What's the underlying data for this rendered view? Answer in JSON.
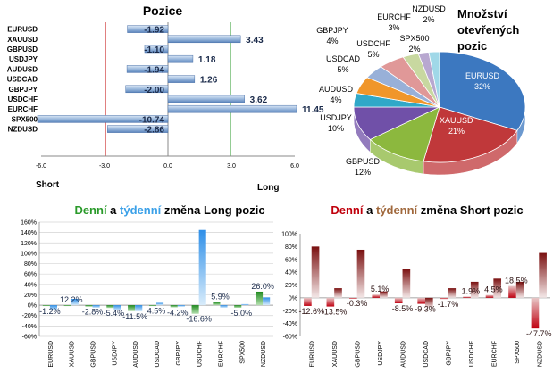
{
  "colors": {
    "bar_blue": "#8fb0d8",
    "bar_blue_dark": "#4a78b8",
    "long_green": "#3aa83a",
    "short_red": "#c0000c",
    "week_blue": "#5ab0f0",
    "week_brown": "#9b6a4a",
    "grid": "#c8c8c8",
    "red_line": "#c00000",
    "green_line": "#2a9a2a"
  },
  "chart_data": [
    {
      "id": "positions",
      "type": "bar",
      "orientation": "horizontal",
      "title": "Pozice",
      "categories": [
        "EURUSD",
        "XAUUSD",
        "GBPUSD",
        "USDJPY",
        "AUDUSD",
        "USDCAD",
        "GBPJPY",
        "USDCHF",
        "EURCHF",
        "SPX500",
        "NZDUSD"
      ],
      "values": [
        -1.92,
        3.43,
        -1.1,
        1.18,
        -1.94,
        1.26,
        -2.0,
        3.62,
        11.45,
        -10.74,
        -2.86
      ],
      "value_labels": [
        "-1.92",
        "3.43",
        "-1.10",
        "1.18",
        "-1.94",
        "1.26",
        "-2.00",
        "3.62",
        "11.45",
        "-10.74",
        "-2.86"
      ],
      "xticks": [
        "-6.0",
        "-3.0",
        "0.0",
        "3.0",
        "6.0"
      ],
      "xtick_values": [
        -6,
        -3,
        0,
        3,
        6
      ],
      "xlim": [
        -6,
        6
      ],
      "xlabel_left": "Short",
      "xlabel_right": "Long",
      "reference_lines": [
        -3,
        3
      ],
      "grid": false
    },
    {
      "id": "open_interest",
      "type": "pie",
      "title_lines": [
        "Množství",
        "otevřených",
        "pozic"
      ],
      "labels": [
        "EURUSD",
        "XAUUSD",
        "GBPUSD",
        "USDJPY",
        "AUDUSD",
        "USDCAD",
        "GBPJPY",
        "USDCHF",
        "EURCHF",
        "SPX500",
        "NZDUSD"
      ],
      "values": [
        32,
        21,
        12,
        10,
        4,
        5,
        4,
        5,
        3,
        2,
        2
      ],
      "value_labels": [
        "32%",
        "21%",
        "12%",
        "10%",
        "4%",
        "5%",
        "4%",
        "5%",
        "3%",
        "2%",
        "2%"
      ],
      "colors": [
        "#3c78c0",
        "#c0383a",
        "#8cb83e",
        "#7050a8",
        "#30a8c8",
        "#f0962a",
        "#98b0d8",
        "#e09898",
        "#c8d8a0",
        "#b8a8d0",
        "#a0d8e8"
      ]
    },
    {
      "id": "long_change",
      "type": "bar",
      "title_parts": [
        "Denní",
        " a ",
        "týdenní",
        " změna Long pozic"
      ],
      "categories": [
        "EURUSD",
        "XAUUSD",
        "GBPUSD",
        "USDJPY",
        "AUDUSD",
        "USDCAD",
        "GBPJPY",
        "USDCHF",
        "EURCHF",
        "SPX500",
        "NZDUSD"
      ],
      "series": [
        {
          "name": "Denní",
          "values": [
            -1.2,
            0,
            -2.8,
            -5.4,
            -11.5,
            -1,
            -4.2,
            -16.6,
            5.9,
            -5.0,
            26.0
          ]
        },
        {
          "name": "týdenní",
          "values": [
            -10,
            12.2,
            -5,
            -10,
            -12,
            4.5,
            -3,
            145,
            -5,
            2,
            15
          ]
        }
      ],
      "data_labels": [
        {
          "category": "EURUSD",
          "text": "-1.2%"
        },
        {
          "category": "XAUUSD",
          "text": "12.2%"
        },
        {
          "category": "GBPUSD",
          "text": "-2.8%"
        },
        {
          "category": "USDJPY",
          "text": "-5.4%"
        },
        {
          "category": "AUDUSD",
          "text": "-11.5%"
        },
        {
          "category": "USDCAD",
          "text": "4.5%"
        },
        {
          "category": "GBPJPY",
          "text": "-4.2%"
        },
        {
          "category": "USDCHF",
          "text": "-16.6%"
        },
        {
          "category": "EURCHF",
          "text": "5.9%"
        },
        {
          "category": "SPX500",
          "text": "-5.0%"
        },
        {
          "category": "NZDUSD",
          "text": "26.0%"
        }
      ],
      "yticks": [
        "160%",
        "140%",
        "120%",
        "100%",
        "80%",
        "60%",
        "40%",
        "20%",
        "0%",
        "-20%",
        "-40%",
        "-60%"
      ],
      "ylim": [
        -60,
        160
      ],
      "grid": true
    },
    {
      "id": "short_change",
      "type": "bar",
      "title_parts": [
        "Denní",
        " a ",
        "týdenní",
        " změna Short pozic"
      ],
      "categories": [
        "EURUSD",
        "XAUUSD",
        "GBPUSD",
        "USDJPY",
        "AUDUSD",
        "USDCAD",
        "GBPJPY",
        "USDCHF",
        "EURCHF",
        "SPX500",
        "NZDUSD"
      ],
      "series": [
        {
          "name": "Denní",
          "values": [
            -12.6,
            -13.5,
            -0.3,
            5.1,
            -8.5,
            -9.3,
            -1.7,
            1.9,
            4.5,
            18.5,
            -47.7
          ]
        },
        {
          "name": "týdenní",
          "values": [
            80,
            15,
            75,
            10,
            45,
            -15,
            15,
            25,
            30,
            25,
            70
          ]
        }
      ],
      "data_labels": [
        {
          "category": "EURUSD",
          "text": "-12.6%"
        },
        {
          "category": "XAUUSD",
          "text": "-13.5%"
        },
        {
          "category": "GBPUSD",
          "text": "-0.3%"
        },
        {
          "category": "USDJPY",
          "text": "5.1%"
        },
        {
          "category": "AUDUSD",
          "text": "-8.5%"
        },
        {
          "category": "USDCAD",
          "text": "-9.3%"
        },
        {
          "category": "GBPJPY",
          "text": "-1.7%"
        },
        {
          "category": "USDCHF",
          "text": "1.9%"
        },
        {
          "category": "EURCHF",
          "text": "4.5%"
        },
        {
          "category": "SPX500",
          "text": "18.5%"
        },
        {
          "category": "NZDUSD",
          "text": "-47.7%"
        }
      ],
      "yticks": [
        "100%",
        "80%",
        "60%",
        "40%",
        "20%",
        "0%",
        "-20%",
        "-40%",
        "-60%"
      ],
      "ylim": [
        -60,
        100
      ],
      "grid": false
    }
  ]
}
